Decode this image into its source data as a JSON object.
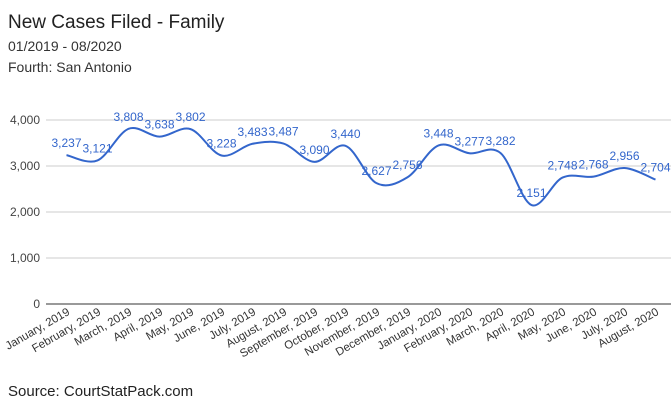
{
  "chart_data": {
    "type": "line",
    "title": "New Cases Filed - Family",
    "subtitle": "01/2019 - 08/2020",
    "subtitle2": "Fourth: San Antonio",
    "source": "Source: CourtStatPack.com",
    "categories": [
      "January, 2019",
      "February, 2019",
      "March, 2019",
      "April, 2019",
      "May, 2019",
      "June, 2019",
      "July, 2019",
      "August, 2019",
      "September, 2019",
      "October, 2019",
      "November, 2019",
      "December, 2019",
      "January, 2020",
      "February, 2020",
      "March, 2020",
      "April, 2020",
      "May, 2020",
      "June, 2020",
      "July, 2020",
      "August, 2020"
    ],
    "series": [
      {
        "name": "Family",
        "color": "#3366cc",
        "values": [
          3237,
          3121,
          3808,
          3638,
          3802,
          3228,
          3483,
          3487,
          3090,
          3440,
          2627,
          2756,
          3448,
          3277,
          3282,
          2151,
          2748,
          2768,
          2956,
          2704
        ],
        "value_labels": [
          "3,237",
          "3,121",
          "3,808",
          "3,638",
          "3,802",
          "3,228",
          "3,483",
          "3,487",
          "3,090",
          "3,440",
          "2,627",
          "2,756",
          "3,448",
          "3,277",
          "3,282",
          "2,151",
          "2,748",
          "2,768",
          "2,956",
          "2,704"
        ]
      }
    ],
    "ylim": [
      0,
      4000
    ],
    "yticks": [
      0,
      {
        "value": 1000,
        "label": "1,000"
      },
      {
        "value": 2000,
        "label": "2,000"
      },
      {
        "value": 3000,
        "label": "3,000"
      },
      {
        "value": 4000,
        "label": "4,000"
      }
    ],
    "grid": true,
    "smooth": true
  }
}
